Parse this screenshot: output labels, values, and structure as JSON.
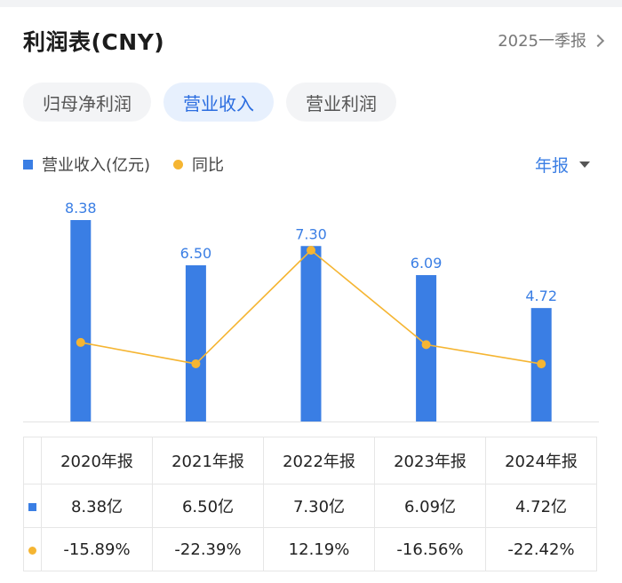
{
  "header": {
    "title": "利润表(CNY)",
    "period_label": "2025一季报"
  },
  "tabs": [
    {
      "label": "归母净利润",
      "active": false
    },
    {
      "label": "营业收入",
      "active": true
    },
    {
      "label": "营业利润",
      "active": false
    }
  ],
  "legend": {
    "bar_label": "营业收入(亿元)",
    "line_label": "同比"
  },
  "period_select": {
    "value": "年报"
  },
  "colors": {
    "bar": "#3a7ee4",
    "line": "#f5b532",
    "positive": "#e0373b",
    "negative": "#1a9b6a",
    "active_tab": "#2b6de0"
  },
  "chart_data": {
    "type": "bar",
    "categories": [
      "2020年报",
      "2021年报",
      "2022年报",
      "2023年报",
      "2024年报"
    ],
    "series": [
      {
        "name": "营业收入(亿元)",
        "type": "bar",
        "values": [
          8.38,
          6.5,
          7.3,
          6.09,
          4.72
        ],
        "labels": [
          "8.38",
          "6.50",
          "7.30",
          "6.09",
          "4.72"
        ]
      },
      {
        "name": "同比",
        "type": "line",
        "values": [
          -15.89,
          -22.39,
          12.19,
          -16.56,
          -22.42
        ]
      }
    ],
    "grid": false,
    "legend_position": "top-left"
  },
  "table": {
    "headers": [
      "2020年报",
      "2021年报",
      "2022年报",
      "2023年报",
      "2024年报"
    ],
    "revenue": [
      "8.38亿",
      "6.50亿",
      "7.30亿",
      "6.09亿",
      "4.72亿"
    ],
    "yoy": [
      "-15.89%",
      "-22.39%",
      "12.19%",
      "-16.56%",
      "-22.42%"
    ]
  }
}
